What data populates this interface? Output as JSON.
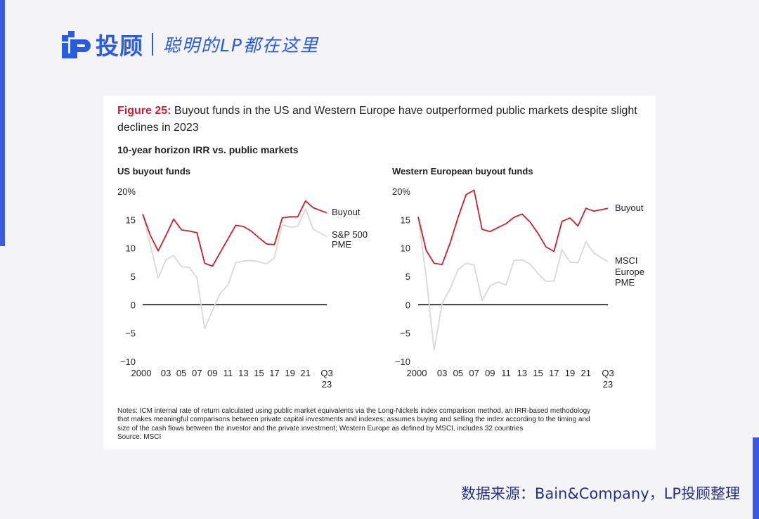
{
  "header": {
    "brand_name": "投顾",
    "slogan": "聪明的LP都在这里"
  },
  "figure": {
    "label": "Figure 25:",
    "title": "Buyout funds in the US and Western Europe have outperformed public markets despite slight declines in 2023",
    "subtitle": "10-year horizon IRR vs. public markets"
  },
  "chart_data": [
    {
      "type": "line",
      "title": "US buyout funds",
      "ylabel_suffix": "%",
      "ylim": [
        -10,
        20
      ],
      "yticks": [
        "20%",
        "15",
        "10",
        "5",
        "0",
        "−5",
        "−10"
      ],
      "xticks": [
        "2000",
        "03",
        "05",
        "07",
        "09",
        "11",
        "13",
        "15",
        "17",
        "19",
        "21",
        "Q3 23"
      ],
      "x": [
        2000,
        2001,
        2002,
        2003,
        2004,
        2005,
        2006,
        2007,
        2008,
        2009,
        2010,
        2011,
        2012,
        2013,
        2014,
        2015,
        2016,
        2017,
        2018,
        2019,
        2020,
        2021,
        2022,
        2023.75
      ],
      "series": [
        {
          "name": "Buyout",
          "color": "#c8202f",
          "values": [
            16,
            12.2,
            9.5,
            12.2,
            15.1,
            13.2,
            13,
            12.7,
            7.3,
            6.8,
            9.2,
            11.6,
            14,
            13.8,
            13,
            11.8,
            10.7,
            10.6,
            15.3,
            15.5,
            15.5,
            18.3,
            17.1,
            16.2
          ]
        },
        {
          "name": "S&P 500 PME",
          "color": "#d8d8d8",
          "values": [
            16,
            10.5,
            4.7,
            7.9,
            8.7,
            6.7,
            6.6,
            4.8,
            -4.2,
            -1,
            2,
            3.5,
            7.4,
            7.7,
            7.8,
            7.6,
            7.2,
            8.3,
            14.1,
            13.7,
            13.8,
            16.9,
            13.3,
            12
          ]
        }
      ],
      "labels": [
        "Buyout",
        "S&P 500",
        "PME"
      ]
    },
    {
      "type": "line",
      "title": "Western European buyout funds",
      "ylabel_suffix": "%",
      "ylim": [
        -10,
        20
      ],
      "yticks": [
        "20%",
        "15",
        "10",
        "5",
        "0",
        "−5",
        "−10"
      ],
      "xticks": [
        "2000",
        "03",
        "05",
        "07",
        "09",
        "11",
        "13",
        "15",
        "17",
        "19",
        "21",
        "Q3 23"
      ],
      "x": [
        2000,
        2001,
        2002,
        2003,
        2004,
        2005,
        2006,
        2007,
        2008,
        2009,
        2010,
        2011,
        2012,
        2013,
        2014,
        2015,
        2016,
        2017,
        2018,
        2019,
        2020,
        2021,
        2022,
        2023.75
      ],
      "series": [
        {
          "name": "Buyout",
          "color": "#c8202f",
          "values": [
            15.5,
            9.6,
            7.3,
            7.1,
            10.9,
            15.4,
            19.4,
            20.2,
            13.3,
            12.9,
            13.6,
            14.3,
            15.4,
            16,
            14.6,
            12.6,
            10.2,
            9.4,
            14.7,
            15.3,
            13.9,
            17,
            16.5,
            17
          ]
        },
        {
          "name": "MSCI Europe PME",
          "color": "#d8d8d8",
          "values": [
            15.5,
            5,
            -8,
            0.2,
            2.8,
            6.2,
            7.3,
            7,
            0.7,
            3.3,
            4,
            3.5,
            7.8,
            7.9,
            7.2,
            5.5,
            4.1,
            4.2,
            9.7,
            7.5,
            7.4,
            11.1,
            9.1,
            7.6
          ]
        }
      ],
      "labels": [
        "Buyout",
        "MSCI",
        "Europe",
        "PME"
      ]
    }
  ],
  "notes": {
    "lines": [
      "Notes: ICM internal rate of return calculated using public market equivalents via the Long-Nickels index comparison method, an IRR-based methodology",
      "that makes meaningful comparisons between private capital investments and indexes; assumes buying and selling the index according to the timing and",
      "size of the cash flows between the investor and the private investment; Western Europe as defined by MSCI, includes 32 countries"
    ],
    "source": "Source: MSCI"
  },
  "footer": {
    "source": "数据来源：Bain&Company，LP投顾整理"
  },
  "colors": {
    "brand_blue": "#2b5bdf",
    "accent_blue": "#3a5be0",
    "buyout_red": "#c8202f",
    "pme_gray": "#d8d8d8",
    "footer_navy": "#25308a"
  }
}
